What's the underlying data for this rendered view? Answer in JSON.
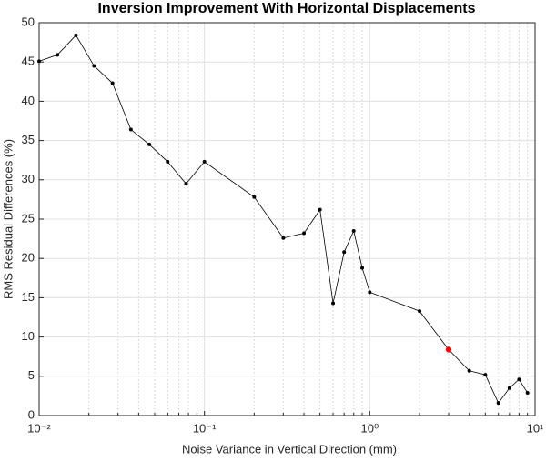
{
  "chart_data": {
    "type": "line",
    "title": "Inversion Improvement With Horizontal Displacements",
    "xlabel": "Noise Variance in Vertical Direction (mm)",
    "ylabel": "RMS Residual Differences (%)",
    "xscale": "log",
    "x": [
      0.01,
      0.0129,
      0.0167,
      0.0215,
      0.0278,
      0.0359,
      0.0464,
      0.0599,
      0.0774,
      0.1,
      0.2,
      0.3,
      0.4,
      0.5,
      0.6,
      0.7,
      0.8,
      0.9,
      1,
      2,
      3,
      4,
      5,
      6,
      7,
      8,
      9
    ],
    "series": [
      {
        "name": "RMS",
        "color": "#000000",
        "values": [
          45.1,
          45.9,
          48.4,
          44.5,
          42.3,
          36.4,
          34.5,
          32.3,
          29.5,
          32.3,
          27.8,
          22.6,
          23.2,
          26.2,
          14.3,
          20.8,
          23.5,
          18.8,
          15.7,
          13.3,
          8.4,
          5.7,
          5.2,
          1.6,
          3.5,
          4.6,
          2.9
        ],
        "highlight_index": 20,
        "highlight_color": "#ff0000"
      }
    ],
    "xlim": [
      0.01,
      10
    ],
    "xticks": [
      {
        "value": 0.01,
        "label": "10⁻²"
      },
      {
        "value": 0.1,
        "label": "10⁻¹"
      },
      {
        "value": 1,
        "label": "10⁰"
      },
      {
        "value": 10,
        "label": "10¹"
      }
    ],
    "xminorticks": [
      0.02,
      0.03,
      0.04,
      0.05,
      0.06,
      0.07,
      0.08,
      0.09,
      0.2,
      0.3,
      0.4,
      0.5,
      0.6,
      0.7,
      0.8,
      0.9,
      2,
      3,
      4,
      5,
      6,
      7,
      8,
      9
    ],
    "ylim": [
      0,
      50
    ],
    "yticks": [
      0,
      5,
      10,
      15,
      20,
      25,
      30,
      35,
      40,
      45,
      50
    ],
    "grid": true
  }
}
